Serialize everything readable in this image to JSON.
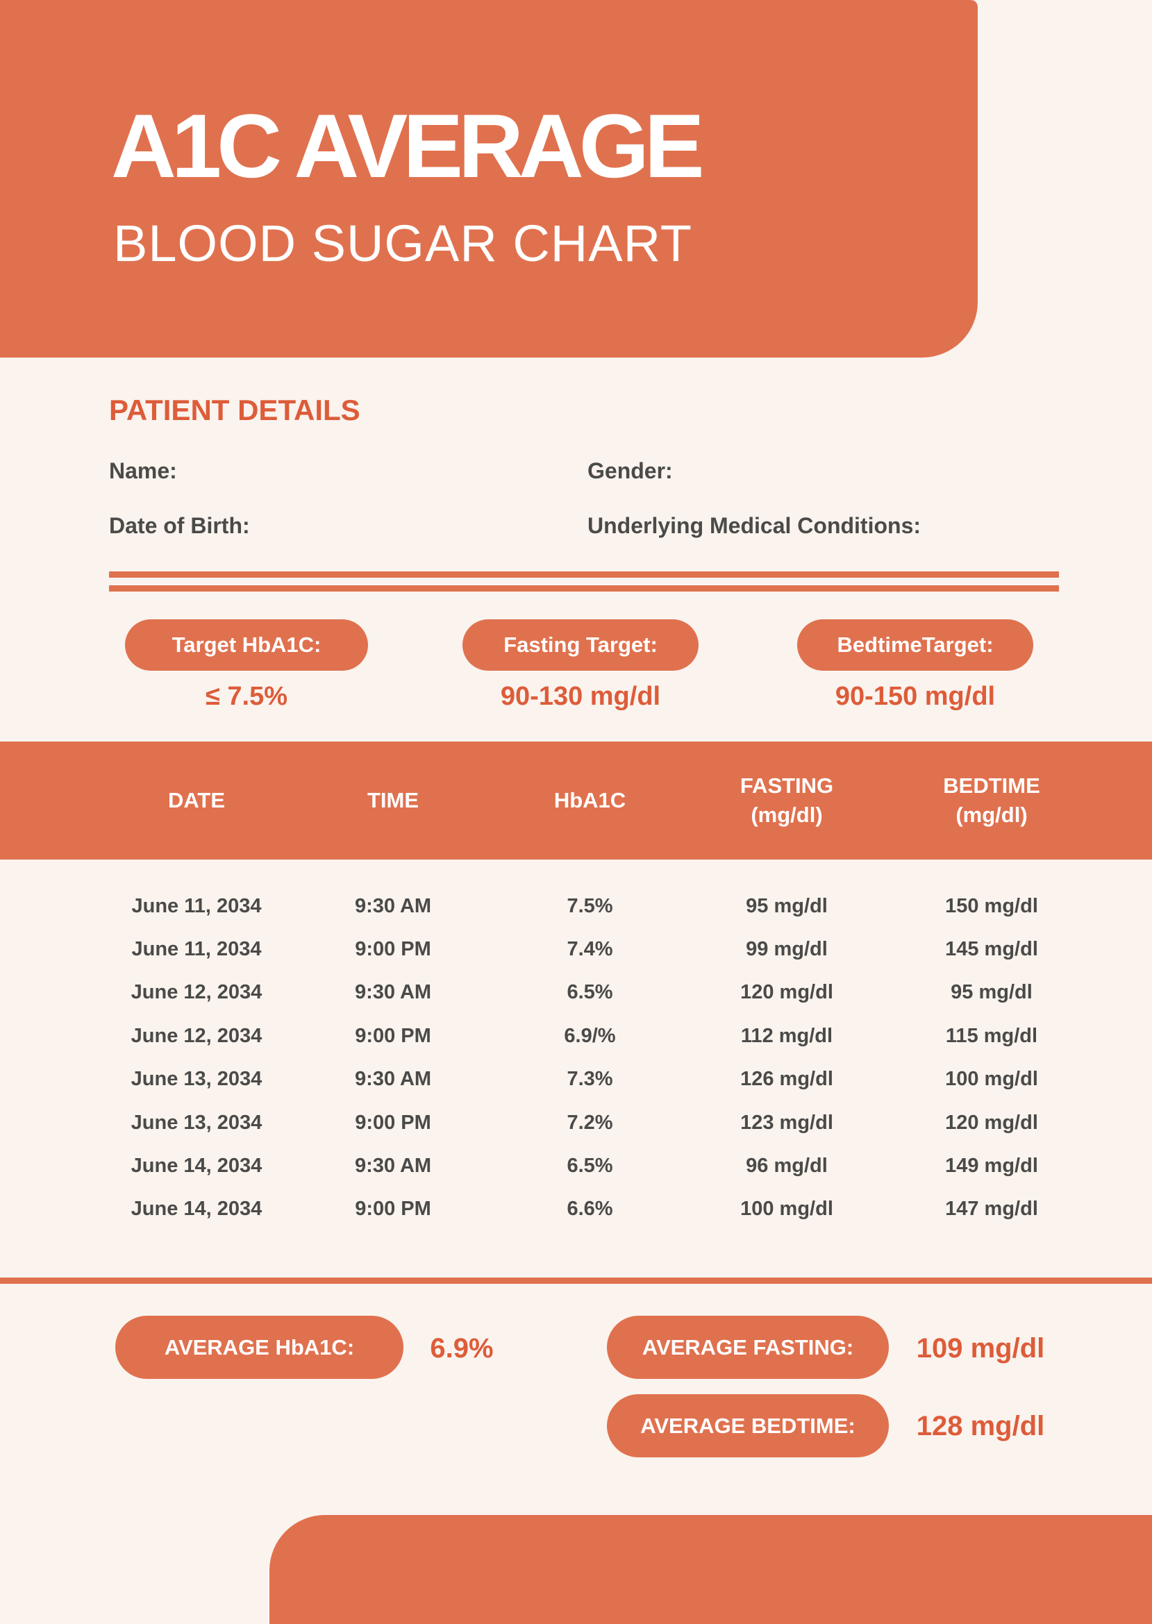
{
  "header": {
    "title": "A1C AVERAGE",
    "subtitle": "BLOOD SUGAR CHART"
  },
  "patient_details": {
    "heading": "PATIENT DETAILS",
    "name_label": "Name:",
    "gender_label": "Gender:",
    "dob_label": "Date of Birth:",
    "conditions_label": "Underlying Medical Conditions:"
  },
  "targets": [
    {
      "label": "Target HbA1C:",
      "value": "≤ 7.5%"
    },
    {
      "label": "Fasting Target:",
      "value": "90-130 mg/dl"
    },
    {
      "label": "BedtimeTarget:",
      "value": "90-150 mg/dl"
    }
  ],
  "table": {
    "columns": [
      {
        "title": "DATE",
        "unit": ""
      },
      {
        "title": "TIME",
        "unit": ""
      },
      {
        "title": "HbA1C",
        "unit": ""
      },
      {
        "title": "FASTING",
        "unit": "(mg/dl)"
      },
      {
        "title": "BEDTIME",
        "unit": "(mg/dl)"
      }
    ],
    "rows": [
      [
        "June 11, 2034",
        "9:30 AM",
        "7.5%",
        "95 mg/dl",
        "150 mg/dl"
      ],
      [
        "June 11, 2034",
        "9:00 PM",
        "7.4%",
        "99 mg/dl",
        "145 mg/dl"
      ],
      [
        "June 12, 2034",
        "9:30 AM",
        "6.5%",
        "120 mg/dl",
        "95 mg/dl"
      ],
      [
        "June 12, 2034",
        "9:00 PM",
        "6.9/%",
        "112 mg/dl",
        "115 mg/dl"
      ],
      [
        "June 13, 2034",
        "9:30 AM",
        "7.3%",
        "126 mg/dl",
        "100 mg/dl"
      ],
      [
        "June 13, 2034",
        "9:00 PM",
        "7.2%",
        "123 mg/dl",
        "120 mg/dl"
      ],
      [
        "June 14, 2034",
        "9:30 AM",
        "6.5%",
        "96 mg/dl",
        "149 mg/dl"
      ],
      [
        "June 14, 2034",
        "9:00 PM",
        "6.6%",
        "100 mg/dl",
        "147 mg/dl"
      ]
    ]
  },
  "averages": {
    "hba1c": {
      "label": "AVERAGE HbA1C:",
      "value": "6.9%"
    },
    "fasting": {
      "label": "AVERAGE FASTING:",
      "value": "109 mg/dl"
    },
    "bedtime": {
      "label": "AVERAGE BEDTIME:",
      "value": "128 mg/dl"
    }
  },
  "colors": {
    "block_orange": "#E0714E",
    "accent_text": "#DD5C39",
    "background": "#FAF3EE",
    "text_dark": "#4A4A48"
  }
}
